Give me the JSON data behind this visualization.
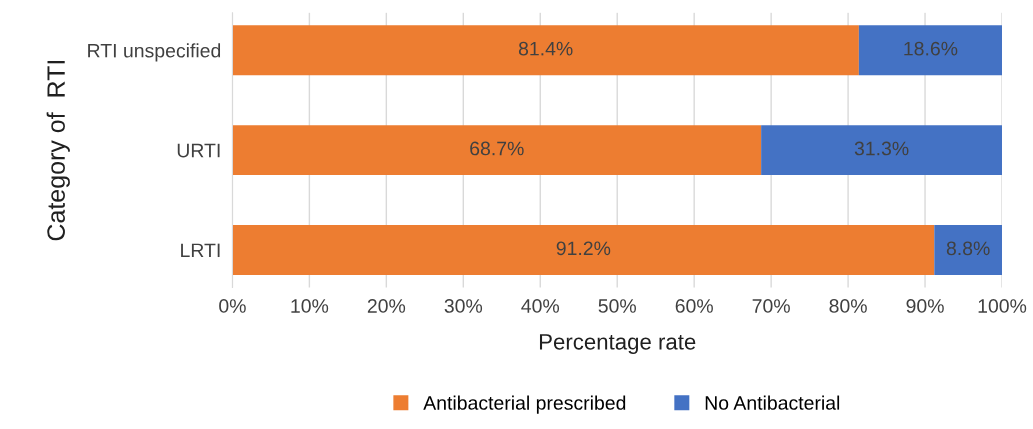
{
  "chart_data": {
    "type": "bar",
    "orientation": "horizontal",
    "stacked": true,
    "categories": [
      "RTI unspecified",
      "URTI",
      "LRTI"
    ],
    "series": [
      {
        "name": "Antibacterial prescribed",
        "color": "#ed7d31",
        "values": [
          81.4,
          68.7,
          91.2
        ],
        "value_labels": [
          "81.4%",
          "68.7%",
          "91.2%"
        ]
      },
      {
        "name": "No Antibacterial",
        "color": "#4472c4",
        "values": [
          18.6,
          31.3,
          8.8
        ],
        "value_labels": [
          "18.6%",
          "31.3%",
          "8.8%"
        ]
      }
    ],
    "xlabel": "Percentage rate",
    "ylabel": "Category of  RTI",
    "xlim": [
      0,
      100
    ],
    "xticks": [
      {
        "value": 0,
        "label": "0%"
      },
      {
        "value": 10,
        "label": "10%"
      },
      {
        "value": 20,
        "label": "20%"
      },
      {
        "value": 30,
        "label": "30%"
      },
      {
        "value": 40,
        "label": "40%"
      },
      {
        "value": 50,
        "label": "50%"
      },
      {
        "value": 60,
        "label": "60%"
      },
      {
        "value": 70,
        "label": "70%"
      },
      {
        "value": 80,
        "label": "80%"
      },
      {
        "value": 90,
        "label": "90%"
      },
      {
        "value": 100,
        "label": "100%"
      }
    ],
    "grid": "x",
    "legend": "bottom"
  }
}
